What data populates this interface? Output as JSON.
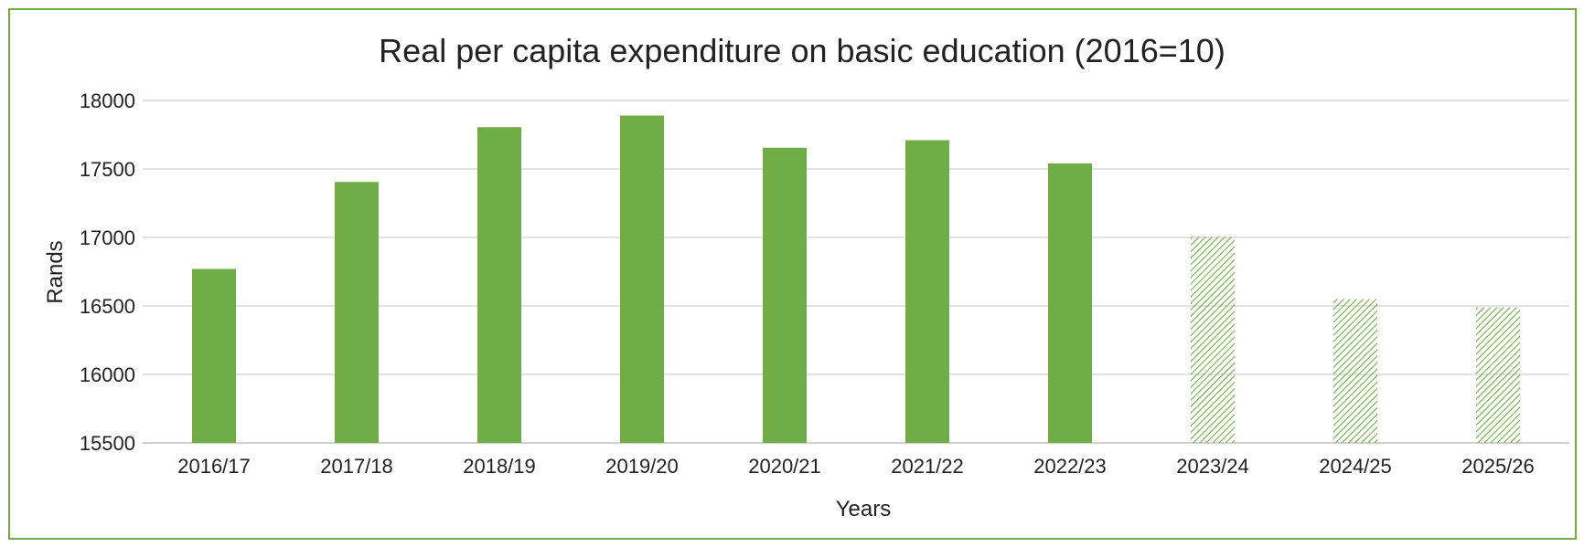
{
  "chart_data": {
    "type": "bar",
    "title": "Real per capita expenditure on basic education (2016=10)",
    "xlabel": "Years",
    "ylabel": "Rands",
    "categories": [
      "2016/17",
      "2017/18",
      "2018/19",
      "2019/20",
      "2020/21",
      "2021/22",
      "2022/23",
      "2023/24",
      "2024/25",
      "2025/26"
    ],
    "values": [
      16770,
      17405,
      17805,
      17890,
      17655,
      17710,
      17540,
      17005,
      16550,
      16490
    ],
    "ylim": [
      15500,
      18000
    ],
    "yticks": [
      15500,
      16000,
      16500,
      17000,
      17500,
      18000
    ],
    "grid": true,
    "legend": "none",
    "bar_style": [
      "solid",
      "solid",
      "solid",
      "solid",
      "solid",
      "solid",
      "solid",
      "hatched",
      "hatched",
      "hatched"
    ],
    "colors": {
      "bar": "#70ad47",
      "border": "#70ad47",
      "grid": "#d9d9d9",
      "axis": "#bfbfbf"
    }
  }
}
